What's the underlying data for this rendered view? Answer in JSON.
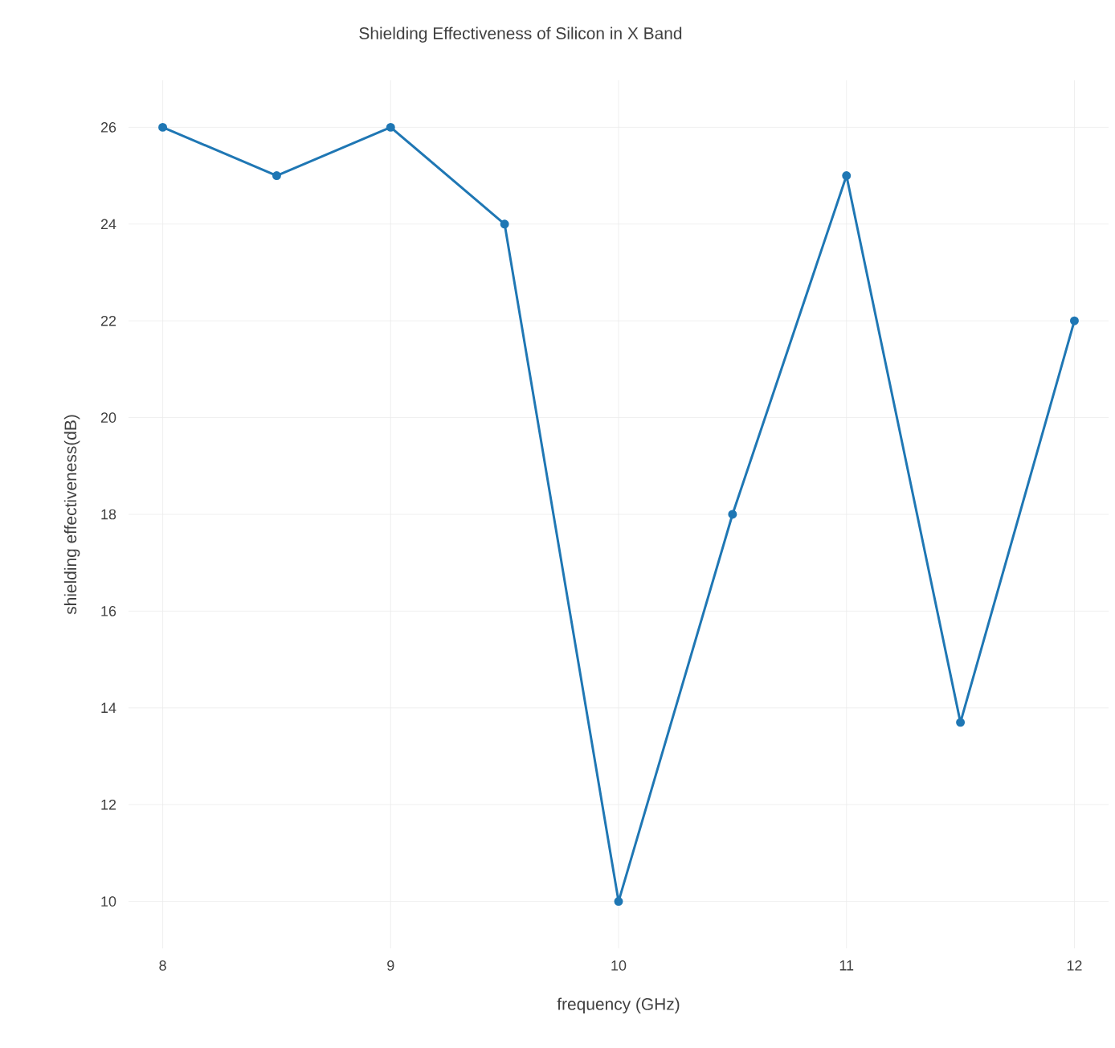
{
  "chart_data": {
    "type": "line",
    "title": "Shielding Effectiveness of Silicon in X Band",
    "xlabel": "frequency (GHz)",
    "ylabel": "shielding effectiveness(dB)",
    "x": [
      8,
      8.5,
      9,
      9.5,
      10,
      10.5,
      11,
      11.5,
      12
    ],
    "series": [
      {
        "color": "#1f77b4",
        "values": [
          26,
          25,
          26,
          24,
          10,
          18,
          25,
          13.7,
          22
        ]
      }
    ],
    "xlim": [
      7.85,
      12.15
    ],
    "ylim": [
      9.03,
      26.97
    ],
    "xticks": [
      8,
      9,
      10,
      11,
      12
    ],
    "yticks": [
      10,
      12,
      14,
      16,
      18,
      20,
      22,
      24,
      26
    ],
    "grid": true,
    "marker": "circle",
    "line_style": "solid"
  }
}
